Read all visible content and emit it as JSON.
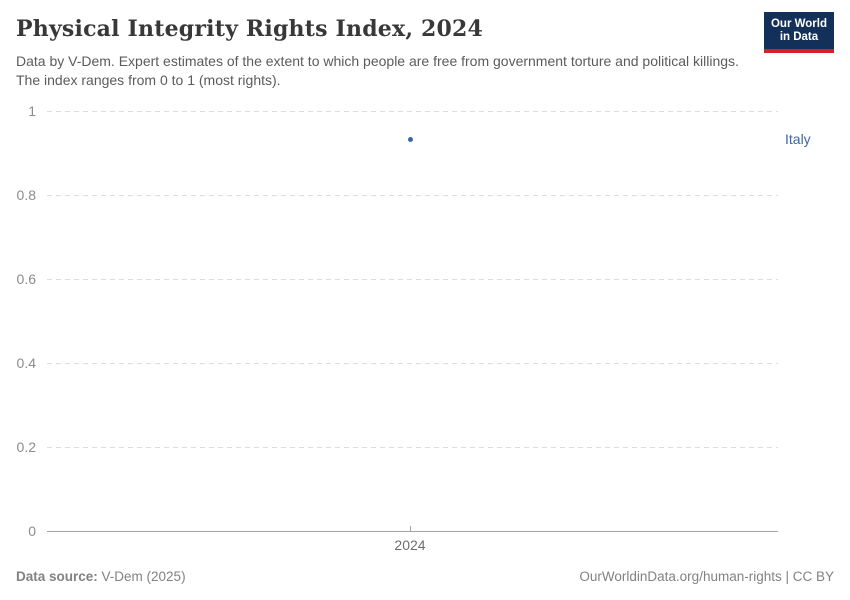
{
  "header": {
    "title": "Physical Integrity Rights Index, 2024",
    "subtitle": "Data by V-Dem. Expert estimates of the extent to which people are free from government torture and political killings. The index ranges from 0 to 1 (most rights).",
    "logo": {
      "line1": "Our World",
      "line2": "in Data",
      "bg_color": "#12305a",
      "stripe_color": "#d0222a"
    }
  },
  "chart_data": {
    "type": "scatter",
    "title": "Physical Integrity Rights Index, 2024",
    "x": [
      2024
    ],
    "series": [
      {
        "name": "Italy",
        "values": [
          0.93
        ],
        "color": "#3e66a6"
      }
    ],
    "xticks": [
      2024
    ],
    "xtick_labels": [
      "2024"
    ],
    "yticks": [
      0,
      0.2,
      0.4,
      0.6,
      0.8,
      1
    ],
    "ytick_labels": [
      "0",
      "0.2",
      "0.4",
      "0.6",
      "0.8",
      "1"
    ],
    "ylim": [
      0,
      1
    ],
    "xlabel": "",
    "ylabel": "",
    "grid": "horizontal-dashed",
    "legend_position": "right-of-plot"
  },
  "footer": {
    "source_label": "Data source:",
    "source_value": " V-Dem (2025)",
    "attribution": "OurWorldinData.org/human-rights | CC BY"
  },
  "colors": {
    "accent_blue": "#3e66a6",
    "gridline": "#dedede",
    "axis_line": "#a5a5a5",
    "tick_text": "#8c8c8c",
    "title_text": "#383838",
    "subtitle_text": "#5b5b5b",
    "footer_text": "#828282",
    "logo_navy": "#12305a",
    "logo_red": "#d0222a"
  }
}
